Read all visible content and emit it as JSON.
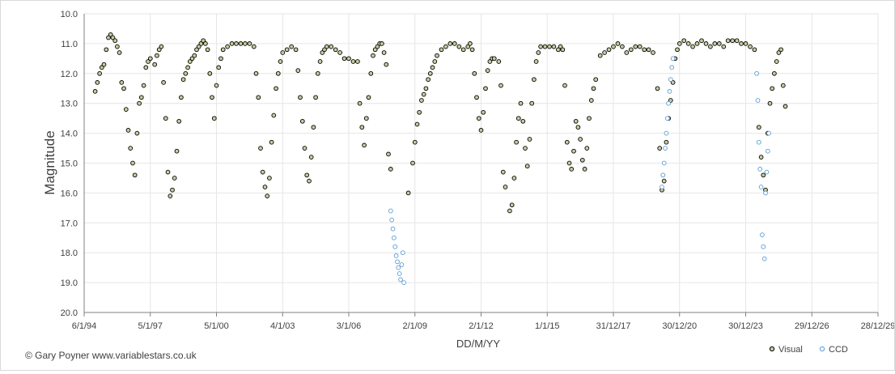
{
  "chart_data": {
    "type": "scatter",
    "title": "",
    "xlabel": "DD/M/YY",
    "ylabel": "Magnitude",
    "credit": "© Gary Poyner www.variablestars.co.uk",
    "yrange": [
      10.0,
      20.0
    ],
    "y_inverted": true,
    "y_ticks": [
      "10.0",
      "11.0",
      "12.0",
      "13.0",
      "14.0",
      "15.0",
      "16.0",
      "17.0",
      "18.0",
      "19.0",
      "20.0"
    ],
    "x_range_year": [
      1994.0,
      2030.0
    ],
    "x_ticks": [
      "6/1/94",
      "5/1/97",
      "5/1/00",
      "4/1/03",
      "3/1/06",
      "2/1/09",
      "2/1/12",
      "1/1/15",
      "31/12/17",
      "30/12/20",
      "30/12/23",
      "29/12/26",
      "28/12/29"
    ],
    "grid": true,
    "legend_position": "bottom-right",
    "legend": [
      "Visual",
      "CCD"
    ],
    "series": [
      {
        "name": "Visual",
        "color": "#000000",
        "fill": "#c8cca0",
        "points": [
          [
            1994.5,
            12.6
          ],
          [
            1994.6,
            12.3
          ],
          [
            1994.7,
            12.0
          ],
          [
            1994.8,
            11.8
          ],
          [
            1994.9,
            11.7
          ],
          [
            1995.0,
            11.2
          ],
          [
            1995.1,
            10.8
          ],
          [
            1995.2,
            10.7
          ],
          [
            1995.3,
            10.8
          ],
          [
            1995.4,
            10.9
          ],
          [
            1995.5,
            11.1
          ],
          [
            1995.6,
            11.3
          ],
          [
            1995.7,
            12.3
          ],
          [
            1995.8,
            12.5
          ],
          [
            1995.9,
            13.2
          ],
          [
            1996.0,
            13.9
          ],
          [
            1996.1,
            14.5
          ],
          [
            1996.2,
            15.0
          ],
          [
            1996.3,
            15.4
          ],
          [
            1996.4,
            14.0
          ],
          [
            1996.5,
            13.0
          ],
          [
            1996.6,
            12.8
          ],
          [
            1996.7,
            12.4
          ],
          [
            1996.8,
            11.8
          ],
          [
            1996.9,
            11.6
          ],
          [
            1997.0,
            11.5
          ],
          [
            1997.2,
            11.7
          ],
          [
            1997.3,
            11.4
          ],
          [
            1997.4,
            11.2
          ],
          [
            1997.5,
            11.1
          ],
          [
            1997.6,
            12.3
          ],
          [
            1997.7,
            13.5
          ],
          [
            1997.8,
            15.3
          ],
          [
            1997.9,
            16.1
          ],
          [
            1998.0,
            15.9
          ],
          [
            1998.1,
            15.5
          ],
          [
            1998.2,
            14.6
          ],
          [
            1998.3,
            13.6
          ],
          [
            1998.4,
            12.8
          ],
          [
            1998.5,
            12.2
          ],
          [
            1998.6,
            12.0
          ],
          [
            1998.7,
            11.8
          ],
          [
            1998.8,
            11.6
          ],
          [
            1998.9,
            11.5
          ],
          [
            1999.0,
            11.4
          ],
          [
            1999.1,
            11.2
          ],
          [
            1999.2,
            11.1
          ],
          [
            1999.3,
            11.0
          ],
          [
            1999.4,
            10.9
          ],
          [
            1999.5,
            11.0
          ],
          [
            1999.6,
            11.2
          ],
          [
            1999.7,
            12.0
          ],
          [
            1999.8,
            12.8
          ],
          [
            1999.9,
            13.5
          ],
          [
            2000.0,
            12.4
          ],
          [
            2000.1,
            11.8
          ],
          [
            2000.2,
            11.5
          ],
          [
            2000.3,
            11.2
          ],
          [
            2000.5,
            11.1
          ],
          [
            2000.7,
            11.0
          ],
          [
            2000.9,
            11.0
          ],
          [
            2001.1,
            11.0
          ],
          [
            2001.3,
            11.0
          ],
          [
            2001.5,
            11.0
          ],
          [
            2001.7,
            11.1
          ],
          [
            2001.8,
            12.0
          ],
          [
            2001.9,
            12.8
          ],
          [
            2002.0,
            14.5
          ],
          [
            2002.1,
            15.3
          ],
          [
            2002.2,
            15.8
          ],
          [
            2002.3,
            16.1
          ],
          [
            2002.4,
            15.5
          ],
          [
            2002.5,
            14.3
          ],
          [
            2002.6,
            13.4
          ],
          [
            2002.7,
            12.5
          ],
          [
            2002.8,
            12.0
          ],
          [
            2002.9,
            11.6
          ],
          [
            2003.0,
            11.3
          ],
          [
            2003.2,
            11.2
          ],
          [
            2003.4,
            11.1
          ],
          [
            2003.6,
            11.2
          ],
          [
            2003.7,
            11.9
          ],
          [
            2003.8,
            12.8
          ],
          [
            2003.9,
            13.6
          ],
          [
            2004.0,
            14.5
          ],
          [
            2004.1,
            15.4
          ],
          [
            2004.2,
            15.6
          ],
          [
            2004.3,
            14.8
          ],
          [
            2004.4,
            13.8
          ],
          [
            2004.5,
            12.8
          ],
          [
            2004.6,
            12.0
          ],
          [
            2004.7,
            11.6
          ],
          [
            2004.8,
            11.3
          ],
          [
            2004.9,
            11.2
          ],
          [
            2005.0,
            11.1
          ],
          [
            2005.2,
            11.1
          ],
          [
            2005.4,
            11.2
          ],
          [
            2005.6,
            11.3
          ],
          [
            2005.8,
            11.5
          ],
          [
            2006.0,
            11.5
          ],
          [
            2006.2,
            11.6
          ],
          [
            2006.4,
            11.6
          ],
          [
            2006.5,
            13.0
          ],
          [
            2006.6,
            13.8
          ],
          [
            2006.7,
            14.4
          ],
          [
            2006.8,
            13.5
          ],
          [
            2006.9,
            12.8
          ],
          [
            2007.0,
            12.0
          ],
          [
            2007.1,
            11.4
          ],
          [
            2007.2,
            11.2
          ],
          [
            2007.3,
            11.1
          ],
          [
            2007.4,
            11.0
          ],
          [
            2007.5,
            11.0
          ],
          [
            2007.6,
            11.3
          ],
          [
            2007.7,
            11.7
          ],
          [
            2007.8,
            14.7
          ],
          [
            2007.9,
            15.2
          ],
          [
            2008.7,
            16.0
          ],
          [
            2008.9,
            15.0
          ],
          [
            2009.0,
            14.3
          ],
          [
            2009.1,
            13.7
          ],
          [
            2009.2,
            13.3
          ],
          [
            2009.3,
            12.9
          ],
          [
            2009.4,
            12.7
          ],
          [
            2009.5,
            12.5
          ],
          [
            2009.6,
            12.2
          ],
          [
            2009.7,
            12.0
          ],
          [
            2009.8,
            11.8
          ],
          [
            2009.9,
            11.6
          ],
          [
            2010.0,
            11.4
          ],
          [
            2010.2,
            11.2
          ],
          [
            2010.4,
            11.1
          ],
          [
            2010.6,
            11.0
          ],
          [
            2010.8,
            11.0
          ],
          [
            2011.0,
            11.1
          ],
          [
            2011.2,
            11.2
          ],
          [
            2011.4,
            11.1
          ],
          [
            2011.5,
            11.0
          ],
          [
            2011.6,
            11.2
          ],
          [
            2011.7,
            12.0
          ],
          [
            2011.8,
            12.8
          ],
          [
            2011.9,
            13.5
          ],
          [
            2012.0,
            13.9
          ],
          [
            2012.1,
            13.3
          ],
          [
            2012.2,
            12.5
          ],
          [
            2012.3,
            11.9
          ],
          [
            2012.4,
            11.6
          ],
          [
            2012.5,
            11.5
          ],
          [
            2012.6,
            11.5
          ],
          [
            2012.8,
            11.6
          ],
          [
            2012.9,
            12.4
          ],
          [
            2013.0,
            15.3
          ],
          [
            2013.1,
            15.8
          ],
          [
            2013.3,
            16.6
          ],
          [
            2013.4,
            16.4
          ],
          [
            2013.5,
            15.5
          ],
          [
            2013.6,
            14.3
          ],
          [
            2013.7,
            13.5
          ],
          [
            2013.8,
            13.0
          ],
          [
            2013.9,
            13.6
          ],
          [
            2014.0,
            14.5
          ],
          [
            2014.1,
            15.1
          ],
          [
            2014.2,
            14.2
          ],
          [
            2014.3,
            13.0
          ],
          [
            2014.4,
            12.2
          ],
          [
            2014.5,
            11.6
          ],
          [
            2014.6,
            11.3
          ],
          [
            2014.7,
            11.1
          ],
          [
            2014.9,
            11.1
          ],
          [
            2015.1,
            11.1
          ],
          [
            2015.3,
            11.1
          ],
          [
            2015.5,
            11.2
          ],
          [
            2015.6,
            11.1
          ],
          [
            2015.7,
            11.2
          ],
          [
            2015.8,
            12.4
          ],
          [
            2015.9,
            14.3
          ],
          [
            2016.0,
            15.0
          ],
          [
            2016.1,
            15.2
          ],
          [
            2016.2,
            14.6
          ],
          [
            2016.3,
            13.6
          ],
          [
            2016.4,
            13.8
          ],
          [
            2016.5,
            14.2
          ],
          [
            2016.6,
            14.9
          ],
          [
            2016.7,
            15.2
          ],
          [
            2016.8,
            14.5
          ],
          [
            2016.9,
            13.5
          ],
          [
            2017.0,
            12.9
          ],
          [
            2017.1,
            12.5
          ],
          [
            2017.2,
            12.2
          ],
          [
            2017.4,
            11.4
          ],
          [
            2017.6,
            11.3
          ],
          [
            2017.8,
            11.2
          ],
          [
            2018.0,
            11.1
          ],
          [
            2018.2,
            11.0
          ],
          [
            2018.4,
            11.1
          ],
          [
            2018.6,
            11.3
          ],
          [
            2018.8,
            11.2
          ],
          [
            2019.0,
            11.1
          ],
          [
            2019.2,
            11.1
          ],
          [
            2019.4,
            11.2
          ],
          [
            2019.6,
            11.2
          ],
          [
            2019.8,
            11.3
          ],
          [
            2020.0,
            12.5
          ],
          [
            2020.1,
            14.5
          ],
          [
            2020.2,
            15.9
          ],
          [
            2020.3,
            15.6
          ],
          [
            2020.4,
            14.3
          ],
          [
            2020.5,
            13.5
          ],
          [
            2020.6,
            12.9
          ],
          [
            2020.7,
            12.3
          ],
          [
            2020.8,
            11.5
          ],
          [
            2020.9,
            11.2
          ],
          [
            2021.0,
            11.0
          ],
          [
            2021.2,
            10.9
          ],
          [
            2021.4,
            11.0
          ],
          [
            2021.6,
            11.1
          ],
          [
            2021.8,
            11.0
          ],
          [
            2022.0,
            10.9
          ],
          [
            2022.2,
            11.0
          ],
          [
            2022.4,
            11.1
          ],
          [
            2022.6,
            11.0
          ],
          [
            2022.8,
            11.0
          ],
          [
            2023.0,
            11.1
          ],
          [
            2023.2,
            10.9
          ],
          [
            2023.4,
            10.9
          ],
          [
            2023.6,
            10.9
          ],
          [
            2023.8,
            11.0
          ],
          [
            2024.0,
            11.0
          ],
          [
            2024.2,
            11.1
          ],
          [
            2024.4,
            11.2
          ],
          [
            2024.6,
            13.8
          ],
          [
            2024.7,
            14.8
          ],
          [
            2024.8,
            15.4
          ],
          [
            2024.9,
            15.9
          ],
          [
            2025.0,
            14.0
          ],
          [
            2025.1,
            13.0
          ],
          [
            2025.2,
            12.5
          ],
          [
            2025.3,
            12.0
          ],
          [
            2025.4,
            11.6
          ],
          [
            2025.5,
            11.3
          ],
          [
            2025.6,
            11.2
          ],
          [
            2025.7,
            12.4
          ],
          [
            2025.8,
            13.1
          ]
        ]
      },
      {
        "name": "CCD",
        "color": "#5b9bd5",
        "fill": "#ffffff",
        "points": [
          [
            2007.9,
            16.6
          ],
          [
            2007.95,
            16.9
          ],
          [
            2008.0,
            17.2
          ],
          [
            2008.05,
            17.5
          ],
          [
            2008.1,
            17.8
          ],
          [
            2008.15,
            18.1
          ],
          [
            2008.2,
            18.3
          ],
          [
            2008.25,
            18.5
          ],
          [
            2008.3,
            18.7
          ],
          [
            2008.35,
            18.9
          ],
          [
            2008.4,
            18.4
          ],
          [
            2008.45,
            18.0
          ],
          [
            2008.5,
            19.0
          ],
          [
            2020.2,
            15.8
          ],
          [
            2020.25,
            15.4
          ],
          [
            2020.3,
            15.0
          ],
          [
            2020.35,
            14.5
          ],
          [
            2020.4,
            14.0
          ],
          [
            2020.45,
            13.5
          ],
          [
            2020.5,
            13.0
          ],
          [
            2020.55,
            12.6
          ],
          [
            2020.6,
            12.2
          ],
          [
            2020.65,
            11.8
          ],
          [
            2020.7,
            11.5
          ],
          [
            2024.5,
            12.0
          ],
          [
            2024.55,
            12.9
          ],
          [
            2024.6,
            14.3
          ],
          [
            2024.65,
            15.2
          ],
          [
            2024.7,
            15.8
          ],
          [
            2024.75,
            17.4
          ],
          [
            2024.8,
            17.8
          ],
          [
            2024.85,
            18.2
          ],
          [
            2024.9,
            16.0
          ],
          [
            2024.95,
            15.3
          ],
          [
            2025.0,
            14.6
          ],
          [
            2025.05,
            14.0
          ]
        ]
      }
    ]
  }
}
